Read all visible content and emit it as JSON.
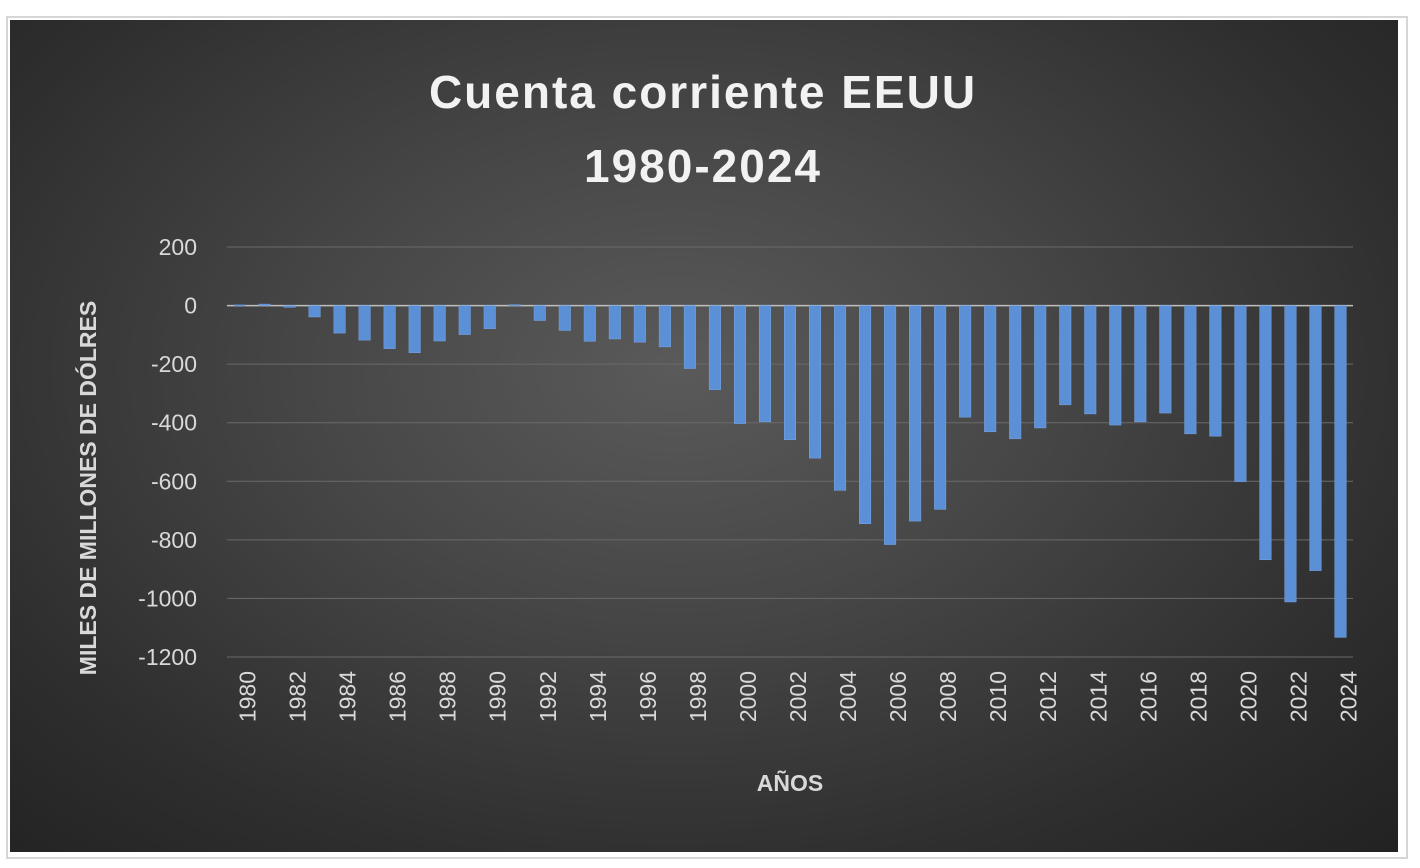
{
  "chart_data": {
    "type": "bar",
    "title": [
      "Cuenta corriente EEUU",
      "1980-2024"
    ],
    "xlabel": "AÑOS",
    "ylabel": "MILES DE MILLONES DE DÓLRES",
    "ylim": [
      -1200,
      200
    ],
    "yticks": [
      200,
      0,
      -200,
      -400,
      -600,
      -800,
      -1000,
      -1200
    ],
    "xtick_labels": [
      "1980",
      "1982",
      "1984",
      "1986",
      "1988",
      "1990",
      "1992",
      "1994",
      "1996",
      "1998",
      "2000",
      "2002",
      "2004",
      "2006",
      "2008",
      "2010",
      "2012",
      "2014",
      "2016",
      "2018",
      "2020",
      "2022",
      "2024"
    ],
    "categories": [
      "1980",
      "1981",
      "1982",
      "1983",
      "1984",
      "1985",
      "1986",
      "1987",
      "1988",
      "1989",
      "1990",
      "1991",
      "1992",
      "1993",
      "1994",
      "1995",
      "1996",
      "1997",
      "1998",
      "1999",
      "2000",
      "2001",
      "2002",
      "2003",
      "2004",
      "2005",
      "2006",
      "2007",
      "2008",
      "2009",
      "2010",
      "2011",
      "2012",
      "2013",
      "2014",
      "2015",
      "2016",
      "2017",
      "2018",
      "2019",
      "2020",
      "2021",
      "2022",
      "2023",
      "2024"
    ],
    "values": [
      2,
      5,
      -6,
      -39,
      -94,
      -118,
      -147,
      -161,
      -121,
      -99,
      -79,
      3,
      -51,
      -85,
      -122,
      -114,
      -125,
      -141,
      -215,
      -287,
      -403,
      -397,
      -458,
      -521,
      -631,
      -745,
      -816,
      -736,
      -696,
      -381,
      -431,
      -455,
      -418,
      -339,
      -370,
      -408,
      -397,
      -367,
      -438,
      -446,
      -601,
      -868,
      -1012,
      -905,
      -1133
    ],
    "grid": true,
    "bar_color": "#5b8fd6",
    "background": "#3c3c3c"
  }
}
